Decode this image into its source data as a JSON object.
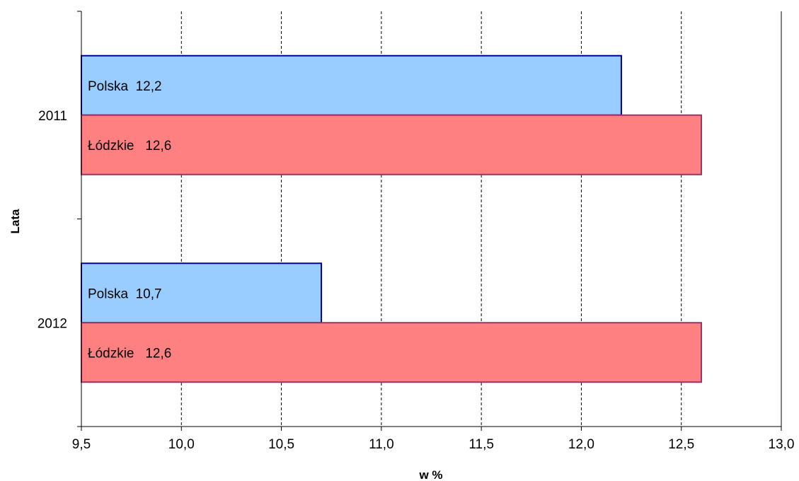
{
  "chart_data": {
    "type": "bar",
    "orientation": "horizontal",
    "title": "",
    "xlabel": "w %",
    "ylabel": "Lata",
    "categories": [
      "2011",
      "2012"
    ],
    "xlim": [
      9.5,
      13.0
    ],
    "x_ticks": [
      9.5,
      10.0,
      10.5,
      11.0,
      11.5,
      12.0,
      12.5,
      13.0
    ],
    "x_tick_labels": [
      "9,5",
      "10,0",
      "10,5",
      "11,0",
      "11,5",
      "12,0",
      "12,5",
      "13,0"
    ],
    "grid": "vertical dashed",
    "legend": "none",
    "series": [
      {
        "name": "Polska",
        "values": [
          12.2,
          10.7
        ],
        "labels": [
          "Polska  12,2",
          "Polska  10,7"
        ],
        "fill": "#99ccff",
        "stroke": "#000099"
      },
      {
        "name": "Łódzkie",
        "values": [
          12.6,
          12.6
        ],
        "labels": [
          "Łódzkie   12,6",
          "Łódzkie   12,6"
        ],
        "fill": "#ff8080",
        "stroke": "#993366"
      }
    ]
  }
}
